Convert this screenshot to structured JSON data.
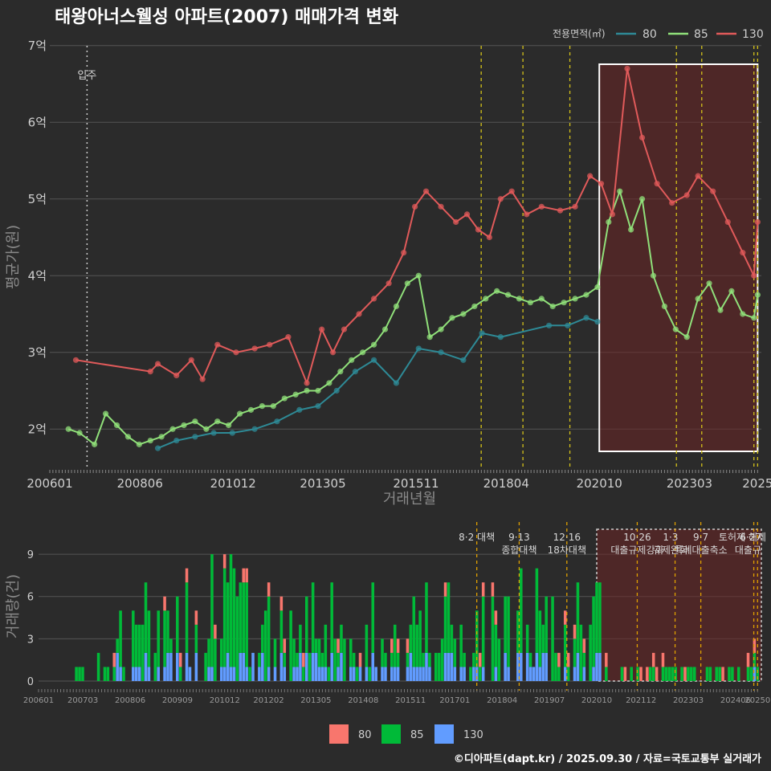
{
  "chart_data": [
    {
      "type": "line",
      "title": "태왕아너스웰성 아파트(2007) 매매가격 변화",
      "xlabel": "거래년월",
      "ylabel": "평균가(원)",
      "ylim": [
        1.5,
        7.05
      ],
      "x_range": [
        2006.0,
        2025.1
      ],
      "y_ticks": [
        2,
        3,
        4,
        5,
        6,
        7
      ],
      "y_tick_labels": [
        "2억",
        "3억",
        "4억",
        "5억",
        "6억",
        "7억"
      ],
      "x_ticks": [
        2006.0,
        2008.42,
        2010.92,
        2013.33,
        2015.83,
        2018.25,
        2020.75,
        2023.17,
        2025.0
      ],
      "x_tick_labels": [
        "200601",
        "200806",
        "201012",
        "201305",
        "201511",
        "201804",
        "202010",
        "202303",
        "2025"
      ],
      "legend_title": "전용면적(㎡)",
      "legend_position": "top-right",
      "move_in": {
        "x": 2007.0,
        "label": "입주"
      },
      "policy_lines": [
        2017.58,
        2018.7,
        2019.96,
        2022.82,
        2023.5,
        2024.9,
        2025.0
      ],
      "highlight_range": [
        2020.75,
        2025.0
      ],
      "series": [
        {
          "name": "80",
          "color": "#2e8a96",
          "x": [
            2008.9,
            2009.4,
            2009.9,
            2010.4,
            2010.9,
            2011.5,
            2012.1,
            2012.7,
            2013.2,
            2013.7,
            2014.2,
            2014.7,
            2015.3,
            2015.9,
            2016.5,
            2017.1,
            2017.6,
            2018.1,
            2019.4,
            2019.9,
            2020.4,
            2020.7
          ],
          "y": [
            1.75,
            1.85,
            1.9,
            1.95,
            1.95,
            2.0,
            2.1,
            2.25,
            2.3,
            2.5,
            2.75,
            2.9,
            2.6,
            3.05,
            3.0,
            2.9,
            3.25,
            3.2,
            3.35,
            3.35,
            3.45,
            3.4
          ]
        },
        {
          "name": "85",
          "color": "#90e07a",
          "x": [
            2006.5,
            2006.8,
            2007.2,
            2007.5,
            2007.8,
            2008.1,
            2008.4,
            2008.7,
            2009.0,
            2009.3,
            2009.6,
            2009.9,
            2010.2,
            2010.5,
            2010.8,
            2011.1,
            2011.4,
            2011.7,
            2012.0,
            2012.3,
            2012.6,
            2012.9,
            2013.2,
            2013.5,
            2013.8,
            2014.1,
            2014.4,
            2014.7,
            2015.0,
            2015.3,
            2015.6,
            2015.9,
            2016.2,
            2016.5,
            2016.8,
            2017.1,
            2017.4,
            2017.7,
            2018.0,
            2018.3,
            2018.6,
            2018.9,
            2019.2,
            2019.5,
            2019.8,
            2020.1,
            2020.4,
            2020.7,
            2021.0,
            2021.3,
            2021.6,
            2021.9,
            2022.2,
            2022.5,
            2022.8,
            2023.1,
            2023.4,
            2023.7,
            2024.0,
            2024.3,
            2024.6,
            2024.9,
            2025.0
          ],
          "y": [
            2.0,
            1.95,
            1.8,
            2.2,
            2.05,
            1.9,
            1.8,
            1.85,
            1.9,
            2.0,
            2.05,
            2.1,
            2.0,
            2.1,
            2.05,
            2.2,
            2.25,
            2.3,
            2.3,
            2.4,
            2.45,
            2.5,
            2.5,
            2.6,
            2.75,
            2.9,
            3.0,
            3.1,
            3.3,
            3.6,
            3.9,
            4.0,
            3.2,
            3.3,
            3.45,
            3.5,
            3.6,
            3.7,
            3.8,
            3.75,
            3.7,
            3.65,
            3.7,
            3.6,
            3.65,
            3.7,
            3.75,
            3.85,
            4.7,
            5.1,
            4.6,
            5.0,
            4.0,
            3.6,
            3.3,
            3.2,
            3.7,
            3.9,
            3.55,
            3.8,
            3.5,
            3.45,
            3.75
          ]
        },
        {
          "name": "130",
          "color": "#e05a5a",
          "x": [
            2006.7,
            2008.7,
            2008.9,
            2009.4,
            2009.8,
            2010.1,
            2010.5,
            2011.0,
            2011.5,
            2011.9,
            2012.4,
            2012.9,
            2013.3,
            2013.6,
            2013.9,
            2014.3,
            2014.7,
            2015.1,
            2015.5,
            2015.8,
            2016.1,
            2016.5,
            2016.9,
            2017.2,
            2017.5,
            2017.8,
            2018.1,
            2018.4,
            2018.8,
            2019.2,
            2019.7,
            2020.1,
            2020.5,
            2020.8,
            2021.1,
            2021.5,
            2021.9,
            2022.3,
            2022.7,
            2023.1,
            2023.4,
            2023.8,
            2024.2,
            2024.6,
            2024.9,
            2025.0
          ],
          "y": [
            2.9,
            2.75,
            2.85,
            2.7,
            2.9,
            2.65,
            3.1,
            3.0,
            3.05,
            3.1,
            3.2,
            2.6,
            3.3,
            3.0,
            3.3,
            3.5,
            3.7,
            3.9,
            4.3,
            4.9,
            5.1,
            4.9,
            4.7,
            4.8,
            4.6,
            4.5,
            5.0,
            5.1,
            4.8,
            4.9,
            4.85,
            4.9,
            5.3,
            5.2,
            4.8,
            6.7,
            5.8,
            5.2,
            4.95,
            5.05,
            5.3,
            5.1,
            4.7,
            4.3,
            4.0,
            4.7
          ]
        }
      ]
    },
    {
      "type": "bar",
      "stacked": true,
      "ylabel": "거래량(건)",
      "ylim": [
        0,
        11
      ],
      "y_ticks": [
        0,
        3,
        6,
        9
      ],
      "y_tick_labels": [
        "0",
        "3",
        "6",
        "9"
      ],
      "x_range": [
        2006.0,
        2025.1
      ],
      "x_ticks": [
        2006.0,
        2007.17,
        2008.42,
        2009.67,
        2010.92,
        2012.08,
        2013.33,
        2014.58,
        2015.83,
        2017.0,
        2018.25,
        2019.5,
        2020.75,
        2021.92,
        2023.17,
        2024.42,
        2025.0
      ],
      "x_tick_labels": [
        "200601",
        "200703",
        "200806",
        "200909",
        "201012",
        "201202",
        "201305",
        "201408",
        "201511",
        "201701",
        "201804",
        "201907",
        "202010",
        "202112",
        "202303",
        "202406",
        "20250"
      ],
      "series": [
        {
          "name": "80",
          "color": "#f8766d"
        },
        {
          "name": "85",
          "color": "#00ba38"
        },
        {
          "name": "130",
          "color": "#619cff"
        }
      ],
      "annotations": [
        {
          "x": 2017.58,
          "lines": [
            "8·2 대책"
          ]
        },
        {
          "x": 2018.7,
          "lines": [
            "9·13",
            "종합대책"
          ]
        },
        {
          "x": 2019.96,
          "lines": [
            "12·16",
            "18차대책"
          ]
        },
        {
          "x": 2021.82,
          "lines": [
            "10·26",
            "대출규제강화"
          ]
        },
        {
          "x": 2022.7,
          "lines": [
            "1·3",
            "규제완화"
          ]
        },
        {
          "x": 2023.5,
          "lines": [
            "9·7",
            "특례대출축소"
          ]
        },
        {
          "x": 2024.6,
          "lines": [
            "토허제 해제"
          ]
        },
        {
          "x": 2025.0,
          "lines": [
            "6·27",
            "대출규"
          ]
        }
      ],
      "highlight_range": [
        2020.75,
        2025.1
      ]
    }
  ],
  "legend_bottom": [
    {
      "label": "80",
      "color": "#f8766d"
    },
    {
      "label": "85",
      "color": "#00ba38"
    },
    {
      "label": "130",
      "color": "#619cff"
    }
  ],
  "credit": "©디아파트(dapt.kr) / 2025.09.30 / 자료=국토교통부 실거래가"
}
